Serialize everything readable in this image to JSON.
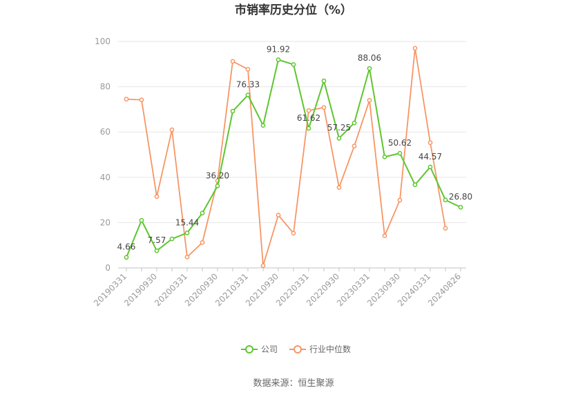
{
  "chart_data": {
    "type": "line",
    "title": "市销率历史分位（%）",
    "source": "数据来源：恒生聚源",
    "ylim": [
      0,
      100
    ],
    "yticks": [
      "0",
      "20",
      "40",
      "60",
      "80",
      "100"
    ],
    "x_tick_labels": [
      "20190331",
      "20190930",
      "20200331",
      "20200930",
      "20210331",
      "20210930",
      "20220331",
      "20220930",
      "20230331",
      "20230930",
      "20240331",
      "20240826"
    ],
    "colors": {
      "company": "#5cc62d",
      "industry": "#f79564"
    },
    "series": [
      {
        "name": "公司",
        "values": [
          4.66,
          21.0,
          7.57,
          12.8,
          15.44,
          24.2,
          36.2,
          69.2,
          76.33,
          62.9,
          91.92,
          89.8,
          61.62,
          82.6,
          57.25,
          64.0,
          88.06,
          49.0,
          50.62,
          36.7,
          44.57,
          30.0,
          26.8
        ],
        "labels": [
          "4.66",
          "",
          "7.57",
          "",
          "15.44",
          "",
          "36.20",
          "",
          "76.33",
          "",
          "91.92",
          "",
          "61.62",
          "",
          "57.25",
          "",
          "88.06",
          "",
          "50.62",
          "",
          "44.57",
          "",
          "26.80"
        ]
      },
      {
        "name": "行业中位数",
        "values": [
          74.5,
          74.2,
          31.5,
          61.0,
          4.8,
          11.2,
          38.5,
          91.2,
          87.7,
          1.0,
          23.3,
          15.3,
          69.5,
          70.8,
          35.5,
          53.8,
          74.0,
          14.2,
          29.9,
          97.0,
          55.3,
          17.5,
          null
        ],
        "labels": []
      }
    ],
    "legend": [
      {
        "name": "公司",
        "color": "#5cc62d"
      },
      {
        "name": "行业中位数",
        "color": "#f79564"
      }
    ]
  }
}
